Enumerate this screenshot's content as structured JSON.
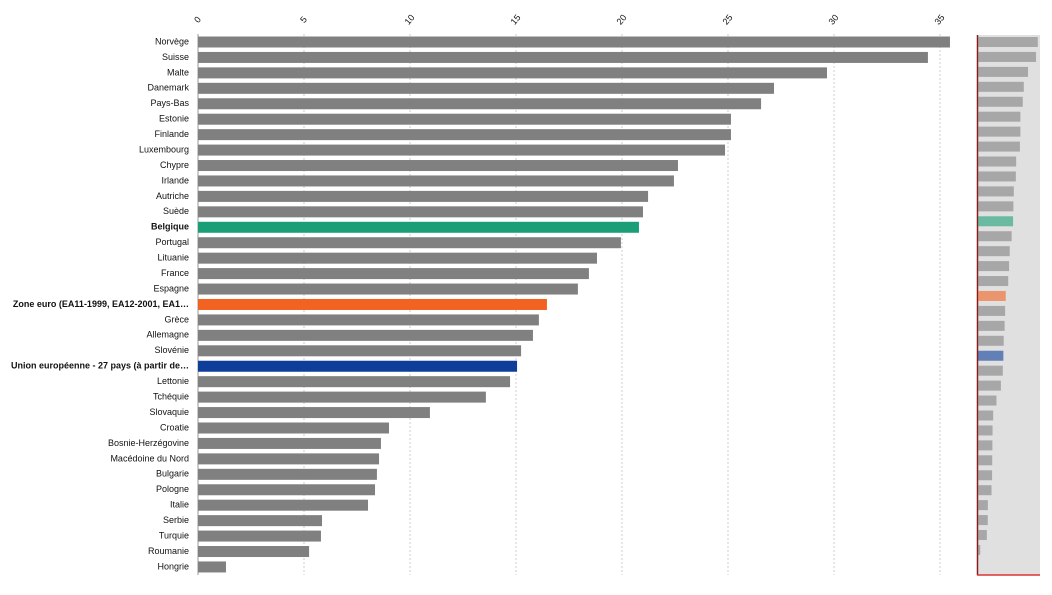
{
  "chart_data": {
    "type": "bar",
    "orientation": "horizontal",
    "categories": [
      "Norvège",
      "Suisse",
      "Malte",
      "Danemark",
      "Pays-Bas",
      "Estonie",
      "Finlande",
      "Luxembourg",
      "Chypre",
      "Irlande",
      "Autriche",
      "Suède",
      "Belgique",
      "Portugal",
      "Lituanie",
      "France",
      "Espagne",
      "Zone euro (EA11-1999, EA12-2001, EA1…",
      "Grèce",
      "Allemagne",
      "Slovénie",
      "Union européenne - 27 pays (à partir de…",
      "Lettonie",
      "Tchéquie",
      "Slovaquie",
      "Croatie",
      "Bosnie-Herzégovine",
      "Macédoine du Nord",
      "Bulgarie",
      "Pologne",
      "Italie",
      "Serbie",
      "Turquie",
      "Roumanie",
      "Hongrie"
    ],
    "values": [
      35.47,
      34.43,
      29.67,
      27.17,
      26.56,
      25.14,
      25.14,
      24.86,
      22.64,
      22.45,
      21.23,
      20.99,
      20.8,
      19.95,
      18.82,
      18.44,
      17.92,
      16.46,
      16.08,
      15.8,
      15.24,
      15.05,
      14.72,
      13.58,
      10.94,
      9.01,
      8.63,
      8.54,
      8.44,
      8.35,
      8.02,
      5.85,
      5.8,
      5.24,
      1.32
    ],
    "color": "#808080",
    "colors": [
      "#808080",
      "#808080",
      "#808080",
      "#808080",
      "#808080",
      "#808080",
      "#808080",
      "#808080",
      "#808080",
      "#808080",
      "#808080",
      "#808080",
      "#1a9e77",
      "#808080",
      "#808080",
      "#808080",
      "#808080",
      "#f26322",
      "#808080",
      "#808080",
      "#808080",
      "#0e3d9a",
      "#808080",
      "#808080",
      "#808080",
      "#808080",
      "#808080",
      "#808080",
      "#808080",
      "#808080",
      "#808080",
      "#808080",
      "#808080",
      "#808080",
      "#808080"
    ],
    "xlim": [
      0,
      35
    ],
    "xticks": [
      0,
      5,
      10,
      15,
      20,
      25,
      30,
      35
    ],
    "grid": true
  }
}
